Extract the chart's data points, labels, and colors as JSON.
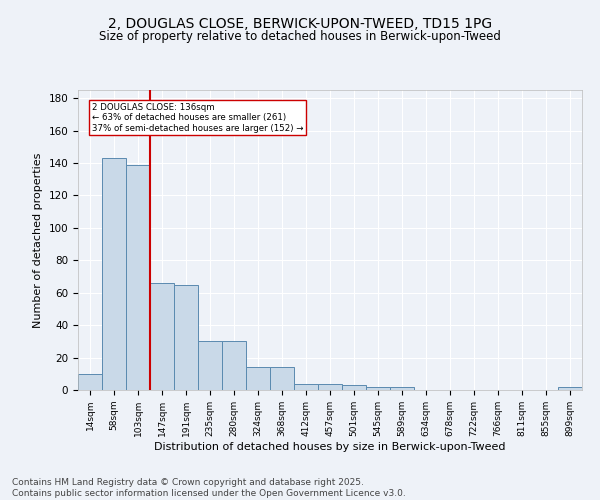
{
  "title_line1": "2, DOUGLAS CLOSE, BERWICK-UPON-TWEED, TD15 1PG",
  "title_line2": "Size of property relative to detached houses in Berwick-upon-Tweed",
  "xlabel": "Distribution of detached houses by size in Berwick-upon-Tweed",
  "ylabel": "Number of detached properties",
  "categories": [
    "14sqm",
    "58sqm",
    "103sqm",
    "147sqm",
    "191sqm",
    "235sqm",
    "280sqm",
    "324sqm",
    "368sqm",
    "412sqm",
    "457sqm",
    "501sqm",
    "545sqm",
    "589sqm",
    "634sqm",
    "678sqm",
    "722sqm",
    "766sqm",
    "811sqm",
    "855sqm",
    "899sqm"
  ],
  "values": [
    10,
    143,
    139,
    66,
    65,
    30,
    30,
    14,
    14,
    4,
    4,
    3,
    2,
    2,
    0,
    0,
    0,
    0,
    0,
    0,
    2
  ],
  "bar_color": "#c9d9e8",
  "bar_edge_color": "#5a8ab0",
  "vline_x_index": 3,
  "vline_color": "#cc0000",
  "annotation_text": "2 DOUGLAS CLOSE: 136sqm\n← 63% of detached houses are smaller (261)\n37% of semi-detached houses are larger (152) →",
  "annotation_box_color": "#ffffff",
  "annotation_box_edge": "#cc0000",
  "ylim": [
    0,
    185
  ],
  "yticks": [
    0,
    20,
    40,
    60,
    80,
    100,
    120,
    140,
    160,
    180
  ],
  "bg_color": "#eef2f8",
  "grid_color": "#ffffff",
  "footer": "Contains HM Land Registry data © Crown copyright and database right 2025.\nContains public sector information licensed under the Open Government Licence v3.0.",
  "footer_fontsize": 6.5,
  "title_fontsize1": 10,
  "title_fontsize2": 8.5
}
